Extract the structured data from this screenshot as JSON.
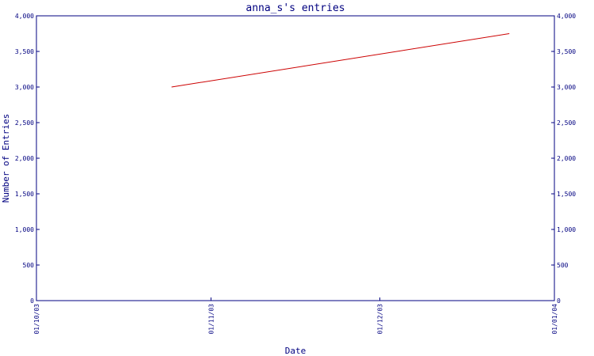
{
  "chart_data": {
    "type": "line",
    "title": "anna_s's entries",
    "xlabel": "Date",
    "ylabel": "Number of Entries",
    "x_ticks": [
      "01/10/03",
      "01/11/03",
      "01/12/03",
      "01/01/04"
    ],
    "x_range": [
      "2003-10-01",
      "2004-01-01"
    ],
    "y_ticks": [
      "0",
      "500",
      "1,000",
      "1,500",
      "2,000",
      "2,500",
      "3,000",
      "3,500",
      "4,000"
    ],
    "ylim": [
      0,
      4000
    ],
    "grid": false,
    "colors": {
      "axis": "#000080",
      "line": "#cc0000"
    },
    "series": [
      {
        "x": [
          "2003-10-25",
          "2003-12-24"
        ],
        "values": [
          3000,
          3750
        ]
      }
    ]
  }
}
